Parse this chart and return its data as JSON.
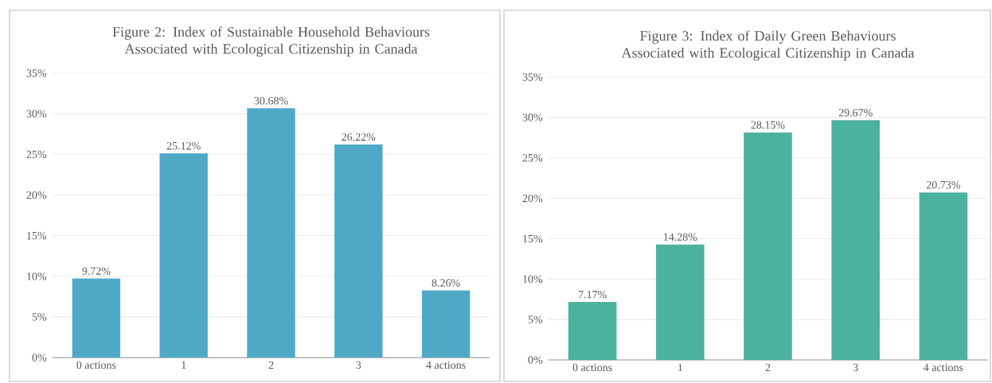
{
  "chart_data": [
    {
      "type": "bar",
      "title": "Figure 2: Index of Sustainable Household Behaviours Associated with Ecological Citizenship in Canada",
      "categories": [
        "0 actions",
        "1",
        "2",
        "3",
        "4 actions"
      ],
      "values": [
        9.72,
        25.12,
        30.68,
        26.22,
        8.26
      ],
      "value_labels": [
        "9.72%",
        "25.12%",
        "30.68%",
        "26.22%",
        "8.26%"
      ],
      "color": "#4fa9c6",
      "ylim": [
        0,
        35
      ],
      "yticks": [
        {
          "value": 0,
          "label": "0%"
        },
        {
          "value": 5,
          "label": "5%"
        },
        {
          "value": 10,
          "label": "10%"
        },
        {
          "value": 15,
          "label": "15%"
        },
        {
          "value": 20,
          "label": "20%"
        },
        {
          "value": 25,
          "label": "25%"
        },
        {
          "value": 30,
          "label": "30%"
        },
        {
          "value": 35,
          "label": "35%"
        }
      ],
      "grid": "y"
    },
    {
      "type": "bar",
      "title": "Figure 3: Index of Daily Green Behaviours Associated with Ecological Citizenship in Canada",
      "categories": [
        "0 actions",
        "1",
        "2",
        "3",
        "4 actions"
      ],
      "values": [
        7.17,
        14.28,
        28.15,
        29.67,
        20.73
      ],
      "value_labels": [
        "7.17%",
        "14.28%",
        "28.15%",
        "29.67%",
        "20.73%"
      ],
      "color": "#4db29d",
      "ylim": [
        0,
        35
      ],
      "yticks": [
        {
          "value": 0,
          "label": "0%"
        },
        {
          "value": 5,
          "label": "5%"
        },
        {
          "value": 10,
          "label": "10%"
        },
        {
          "value": 15,
          "label": "15%"
        },
        {
          "value": 20,
          "label": "20%"
        },
        {
          "value": 25,
          "label": "25%"
        },
        {
          "value": 30,
          "label": "30%"
        },
        {
          "value": 35,
          "label": "35%"
        }
      ],
      "grid": "y"
    }
  ]
}
